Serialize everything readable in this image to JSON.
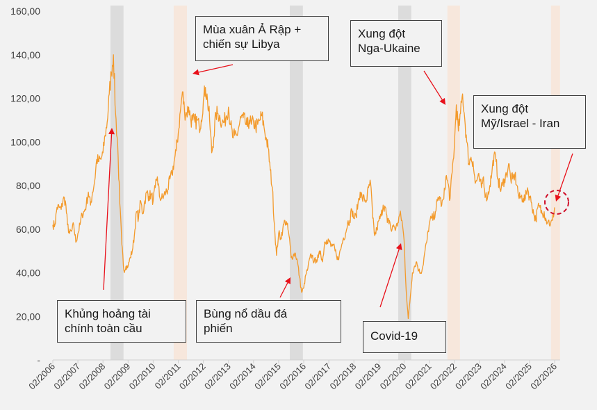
{
  "chart_data": {
    "type": "line",
    "title": "",
    "xlabel": "",
    "ylabel": "",
    "ylim": [
      0,
      160
    ],
    "yticks": [
      "-",
      "20,00",
      "40,00",
      "60,00",
      "80,00",
      "100,00",
      "120,00",
      "140,00",
      "160,00"
    ],
    "xticks": [
      "02/2006",
      "02/2007",
      "02/2008",
      "02/2009",
      "02/2010",
      "02/2011",
      "02/2012",
      "02/2013",
      "02/2014",
      "02/2015",
      "02/2016",
      "02/2017",
      "02/2018",
      "02/2019",
      "02/2020",
      "02/2021",
      "02/2022",
      "02/2023",
      "02/2024",
      "02/2025",
      "02/2026"
    ],
    "grid": false,
    "line_color": "#f39a2b",
    "series": [
      {
        "start": "02/2006",
        "frequency": "monthly",
        "values": [
          62,
          62,
          70,
          70,
          69,
          74,
          73,
          62,
          58,
          59,
          62,
          54,
          58,
          62,
          67,
          68,
          71,
          77,
          71,
          77,
          82,
          92,
          91,
          92,
          95,
          103,
          109,
          122,
          132,
          140,
          113,
          99,
          72,
          53,
          41,
          43,
          43,
          47,
          50,
          57,
          68,
          65,
          73,
          67,
          73,
          77,
          75,
          76,
          73,
          79,
          84,
          75,
          74,
          75,
          77,
          78,
          83,
          85,
          91,
          96,
          104,
          114,
          123,
          114,
          113,
          116,
          110,
          110,
          109,
          110,
          107,
          110,
          119,
          125,
          119,
          110,
          95,
          102,
          113,
          113,
          111,
          109,
          109,
          112,
          116,
          108,
          102,
          103,
          103,
          107,
          111,
          111,
          109,
          107,
          110,
          108,
          109,
          107,
          108,
          110,
          112,
          107,
          102,
          97,
          87,
          79,
          62,
          48,
          58,
          56,
          60,
          64,
          62,
          57,
          47,
          48,
          49,
          45,
          38,
          31,
          33,
          39,
          42,
          47,
          48,
          45,
          46,
          47,
          50,
          45,
          54,
          55,
          55,
          52,
          53,
          50,
          46,
          48,
          52,
          56,
          58,
          63,
          64,
          69,
          65,
          66,
          72,
          77,
          74,
          74,
          73,
          79,
          81,
          65,
          57,
          60,
          64,
          66,
          71,
          70,
          63,
          64,
          59,
          62,
          60,
          63,
          67,
          64,
          55,
          32,
          19,
          29,
          40,
          43,
          45,
          41,
          40,
          43,
          50,
          55,
          62,
          65,
          65,
          68,
          73,
          75,
          71,
          74,
          84,
          81,
          74,
          86,
          97,
          117,
          105,
          113,
          122,
          111,
          100,
          90,
          93,
          91,
          81,
          83,
          83,
          79,
          84,
          75,
          75,
          80,
          86,
          94,
          91,
          83,
          78,
          80,
          83,
          85,
          90,
          83,
          83,
          85,
          80,
          74,
          75,
          74,
          74,
          79,
          75,
          72,
          67,
          64,
          70,
          70,
          67,
          68,
          64,
          64,
          62,
          64,
          70
        ]
      }
    ],
    "shaded_periods": [
      {
        "start": 2008.38,
        "end": 2008.9,
        "color": "#d9d9d9"
      },
      {
        "start": 2010.9,
        "end": 2011.43,
        "color": "#f7e6d9"
      },
      {
        "start": 2015.53,
        "end": 2016.05,
        "color": "#d9d9d9"
      },
      {
        "start": 2019.85,
        "end": 2020.37,
        "color": "#d9d9d9"
      },
      {
        "start": 2021.81,
        "end": 2022.31,
        "color": "#f7e6d9"
      },
      {
        "start": 2025.94,
        "end": 2026.3,
        "color": "#f7e6d9"
      }
    ],
    "annotations": [
      {
        "id": "financial-crisis",
        "text": "Khủng hoảng tài\nchính toàn cầu"
      },
      {
        "id": "arab-spring",
        "text": "Mùa xuân Ả Rập +\nchiến sự Libya"
      },
      {
        "id": "shale-boom",
        "text": "Bùng nổ dầu đá\nphiến"
      },
      {
        "id": "covid",
        "text": "Covid-19"
      },
      {
        "id": "russia-ukraine",
        "text": "Xung đột\nNga-Ukaine"
      },
      {
        "id": "us-israel-iran",
        "text": "Xung đột\nMỹ/Israel - Iran"
      }
    ],
    "arrow_color": "#e8101a"
  }
}
